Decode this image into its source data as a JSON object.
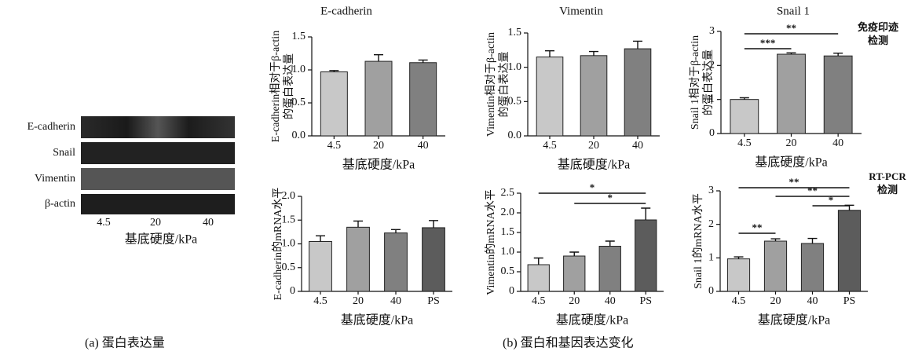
{
  "blot": {
    "rows": [
      "E-cadherin",
      "Snail",
      "Vimentin",
      "β-actin"
    ],
    "categories": [
      "4.5",
      "20",
      "40"
    ],
    "xlabel": "基底硬度/kPa",
    "caption": "(a) 蛋白表达量"
  },
  "caption_b": "(b) 蛋白和基因表达变化",
  "chart_data": [
    {
      "type": "bar",
      "title": "E-cadherin",
      "ylabel": [
        "E-cadherin相对于β-actin",
        "的蛋白表达量"
      ],
      "xlabel": "基底硬度/kPa",
      "categories": [
        "4.5",
        "20",
        "40"
      ],
      "values": [
        0.97,
        1.13,
        1.11
      ],
      "errors": [
        0.02,
        0.1,
        0.04
      ],
      "colors": [
        "#c8c8c8",
        "#a0a0a0",
        "#808080"
      ],
      "ylim": [
        0,
        1.5
      ],
      "yticks": [
        {
          "value": 0,
          "label": "0.0"
        },
        0.5,
        {
          "value": 1,
          "label": "1.0"
        },
        1.5
      ],
      "significance": []
    },
    {
      "type": "bar",
      "title": "Vimentin",
      "ylabel": [
        "Vimentin相对于β-actin",
        "的蛋白表达量"
      ],
      "xlabel": "基底硬度/kPa",
      "categories": [
        "4.5",
        "20",
        "40"
      ],
      "values": [
        1.15,
        1.17,
        1.27
      ],
      "errors": [
        0.09,
        0.06,
        0.11
      ],
      "colors": [
        "#c8c8c8",
        "#a0a0a0",
        "#808080"
      ],
      "ylim": [
        0,
        1.5
      ],
      "yticks": [
        {
          "value": 0,
          "label": "0.0"
        },
        0.5,
        {
          "value": 1,
          "label": "1.0"
        },
        1.5
      ],
      "significance": []
    },
    {
      "type": "bar",
      "title": "Snail 1",
      "ylabel": [
        "Snail 1相对于β-actin",
        "的蛋白表达量"
      ],
      "xlabel": "基底硬度/kPa",
      "categories": [
        "4.5",
        "20",
        "40"
      ],
      "values": [
        1.0,
        2.33,
        2.28
      ],
      "errors": [
        0.05,
        0.04,
        0.08
      ],
      "colors": [
        "#c8c8c8",
        "#a0a0a0",
        "#808080"
      ],
      "ylim": [
        0,
        3
      ],
      "yticks": [
        0,
        1,
        2,
        3
      ],
      "significance": [
        {
          "text": "***",
          "between": [
            "4.5",
            "20"
          ]
        },
        {
          "text": "**",
          "between": [
            "4.5",
            "40"
          ]
        }
      ],
      "annotation": [
        "免疫印迹",
        "检测"
      ]
    },
    {
      "type": "bar",
      "ylabel": "E-cadherin的mRNA水平",
      "xlabel": "基底硬度/kPa",
      "categories": [
        "4.5",
        "20",
        "40",
        "PS"
      ],
      "values": [
        1.05,
        1.35,
        1.23,
        1.34
      ],
      "errors": [
        0.12,
        0.13,
        0.07,
        0.15
      ],
      "colors": [
        "#c8c8c8",
        "#a0a0a0",
        "#808080",
        "#5c5c5c"
      ],
      "ylim": [
        0,
        2
      ],
      "yticks": [
        0,
        0.5,
        {
          "value": 1,
          "label": "1.0"
        },
        1.5,
        {
          "value": 2,
          "label": "2.0"
        }
      ],
      "significance": []
    },
    {
      "type": "bar",
      "ylabel": "Vimentin的mRNA水平",
      "xlabel": "基底硬度/kPa",
      "categories": [
        "4.5",
        "20",
        "40",
        "PS"
      ],
      "values": [
        0.68,
        0.9,
        1.15,
        1.82
      ],
      "errors": [
        0.17,
        0.1,
        0.13,
        0.3
      ],
      "colors": [
        "#c8c8c8",
        "#a0a0a0",
        "#808080",
        "#5c5c5c"
      ],
      "ylim": [
        0,
        2.5
      ],
      "yticks": [
        0,
        0.5,
        {
          "value": 1,
          "label": "1.0"
        },
        1.5,
        {
          "value": 2,
          "label": "2.0"
        },
        2.5
      ],
      "significance": [
        {
          "text": "*",
          "between": [
            "4.5",
            "PS"
          ]
        },
        {
          "text": "*",
          "between": [
            "20",
            "PS"
          ]
        }
      ]
    },
    {
      "type": "bar",
      "ylabel": "Snail 1的mRNA水平",
      "xlabel": "基底硬度/kPa",
      "categories": [
        "4.5",
        "20",
        "40",
        "PS"
      ],
      "values": [
        0.97,
        1.5,
        1.43,
        2.42
      ],
      "errors": [
        0.06,
        0.07,
        0.15,
        0.15
      ],
      "colors": [
        "#c8c8c8",
        "#a0a0a0",
        "#808080",
        "#5c5c5c"
      ],
      "ylim": [
        0,
        3
      ],
      "yticks": [
        0,
        1,
        2,
        3
      ],
      "significance": [
        {
          "text": "**",
          "between": [
            "4.5",
            "20"
          ]
        },
        {
          "text": "**",
          "between": [
            "4.5",
            "PS"
          ]
        },
        {
          "text": "**",
          "between": [
            "20",
            "PS"
          ]
        },
        {
          "text": "*",
          "between": [
            "40",
            "PS"
          ]
        }
      ],
      "annotation": [
        "RT-PCR",
        "检测"
      ]
    }
  ]
}
